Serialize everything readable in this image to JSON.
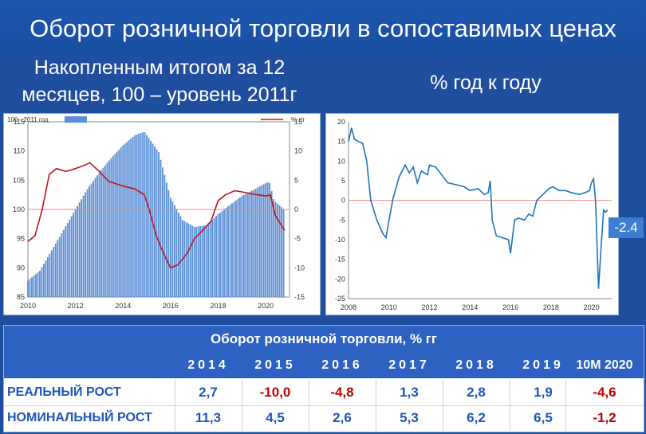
{
  "slide": {
    "title": "Оборот розничной торговли в сопоставимых ценах",
    "left_subtitle_line1": "Накопленным итогом за 12",
    "left_subtitle_line2": "месяцев, 100 – уровень 2011г",
    "right_subtitle": "% год к году"
  },
  "colors": {
    "background": "#1f4e9e",
    "bar": "#5b8fd6",
    "red_line": "#c0141c",
    "blue_line": "#1f74b8",
    "negative": "#c00000",
    "positive": "#1f56b6"
  },
  "chart_data": [
    {
      "type": "bar",
      "legend": {
        "bar_label": "100 - 2011 год",
        "line_label": "% г/г"
      },
      "x_ticks": [
        "2010",
        "2012",
        "2014",
        "2016",
        "2018",
        "2020"
      ],
      "ylim_left": [
        85,
        115
      ],
      "y_ticks_left": [
        "85",
        "90",
        "95",
        "100",
        "105",
        "110",
        "115"
      ],
      "ylim_right": [
        -15,
        15
      ],
      "y_ticks_right": [
        "-15",
        "-10",
        "-5",
        "0",
        "5",
        "10",
        "15"
      ],
      "grid": false,
      "series": [
        {
          "name": "100 - 2011 год",
          "kind": "bar",
          "axis": "left",
          "points": [
            [
              2010.0,
              87.8
            ],
            [
              2010.5,
              89.5
            ],
            [
              2011.0,
              93.0
            ],
            [
              2011.5,
              96.5
            ],
            [
              2012.0,
              100.0
            ],
            [
              2012.5,
              103.5
            ],
            [
              2013.0,
              106.3
            ],
            [
              2013.5,
              108.8
            ],
            [
              2014.0,
              111.0
            ],
            [
              2014.5,
              112.7
            ],
            [
              2014.9,
              113.3
            ],
            [
              2015.5,
              109.8
            ],
            [
              2016.0,
              102.0
            ],
            [
              2016.5,
              98.2
            ],
            [
              2017.0,
              97.0
            ],
            [
              2017.5,
              97.3
            ],
            [
              2018.0,
              99.2
            ],
            [
              2018.5,
              100.8
            ],
            [
              2019.0,
              102.3
            ],
            [
              2019.5,
              103.4
            ],
            [
              2020.0,
              104.5
            ],
            [
              2020.15,
              104.8
            ],
            [
              2020.35,
              101.5
            ],
            [
              2020.75,
              100.1
            ]
          ]
        },
        {
          "name": "% г/г",
          "kind": "line",
          "axis": "right",
          "points": [
            [
              2010.0,
              -5.5
            ],
            [
              2010.3,
              -4.5
            ],
            [
              2010.6,
              0.0
            ],
            [
              2010.9,
              6.0
            ],
            [
              2011.2,
              7.0
            ],
            [
              2011.6,
              6.5
            ],
            [
              2012.0,
              7.0
            ],
            [
              2012.4,
              7.6
            ],
            [
              2012.6,
              8.0
            ],
            [
              2013.0,
              6.5
            ],
            [
              2013.4,
              4.8
            ],
            [
              2014.0,
              4.0
            ],
            [
              2014.5,
              3.5
            ],
            [
              2014.9,
              2.5
            ],
            [
              2015.1,
              0.0
            ],
            [
              2015.4,
              -4.5
            ],
            [
              2015.7,
              -7.5
            ],
            [
              2016.0,
              -10.0
            ],
            [
              2016.3,
              -9.5
            ],
            [
              2016.7,
              -7.5
            ],
            [
              2017.0,
              -5.0
            ],
            [
              2017.3,
              -3.8
            ],
            [
              2017.7,
              -2.0
            ],
            [
              2018.0,
              1.5
            ],
            [
              2018.3,
              2.5
            ],
            [
              2018.7,
              3.2
            ],
            [
              2019.0,
              3.0
            ],
            [
              2019.5,
              2.6
            ],
            [
              2020.0,
              2.3
            ],
            [
              2020.2,
              2.5
            ],
            [
              2020.4,
              -1.0
            ],
            [
              2020.7,
              -3.0
            ],
            [
              2020.8,
              -3.6
            ]
          ]
        }
      ]
    },
    {
      "type": "line",
      "x_ticks": [
        "2008",
        "2010",
        "2012",
        "2014",
        "2016",
        "2018",
        "2020"
      ],
      "ylim": [
        -25,
        20
      ],
      "y_ticks": [
        "-25",
        "-20",
        "-15",
        "-10",
        "-5",
        "0",
        "5",
        "10",
        "15",
        "20"
      ],
      "grid": false,
      "end_label": "-2.4",
      "series": [
        {
          "points": [
            [
              2008.0,
              15.0
            ],
            [
              2008.15,
              18.5
            ],
            [
              2008.3,
              15.5
            ],
            [
              2008.5,
              15.0
            ],
            [
              2008.7,
              14.5
            ],
            [
              2008.9,
              10.0
            ],
            [
              2009.1,
              0.0
            ],
            [
              2009.4,
              -5.0
            ],
            [
              2009.7,
              -8.5
            ],
            [
              2009.85,
              -9.5
            ],
            [
              2010.0,
              -5.0
            ],
            [
              2010.2,
              0.5
            ],
            [
              2010.5,
              6.0
            ],
            [
              2010.8,
              9.0
            ],
            [
              2011.0,
              7.0
            ],
            [
              2011.2,
              8.5
            ],
            [
              2011.4,
              4.5
            ],
            [
              2011.6,
              7.5
            ],
            [
              2011.9,
              6.5
            ],
            [
              2012.0,
              9.0
            ],
            [
              2012.3,
              8.5
            ],
            [
              2012.6,
              6.5
            ],
            [
              2012.9,
              4.5
            ],
            [
              2013.3,
              4.0
            ],
            [
              2013.7,
              3.5
            ],
            [
              2014.0,
              2.5
            ],
            [
              2014.4,
              3.0
            ],
            [
              2014.7,
              1.5
            ],
            [
              2014.9,
              2.0
            ],
            [
              2015.0,
              5.0
            ],
            [
              2015.1,
              -5.0
            ],
            [
              2015.3,
              -9.0
            ],
            [
              2015.6,
              -9.5
            ],
            [
              2015.9,
              -10.0
            ],
            [
              2016.0,
              -13.5
            ],
            [
              2016.2,
              -5.0
            ],
            [
              2016.4,
              -4.5
            ],
            [
              2016.7,
              -5.0
            ],
            [
              2016.9,
              -3.5
            ],
            [
              2017.1,
              -4.0
            ],
            [
              2017.3,
              0.0
            ],
            [
              2017.6,
              1.5
            ],
            [
              2017.9,
              3.0
            ],
            [
              2018.1,
              3.5
            ],
            [
              2018.4,
              2.5
            ],
            [
              2018.7,
              2.5
            ],
            [
              2019.0,
              2.0
            ],
            [
              2019.4,
              1.5
            ],
            [
              2019.7,
              2.0
            ],
            [
              2019.9,
              2.5
            ],
            [
              2020.0,
              4.5
            ],
            [
              2020.1,
              5.5
            ],
            [
              2020.2,
              0.0
            ],
            [
              2020.35,
              -22.5
            ],
            [
              2020.5,
              -10.0
            ],
            [
              2020.6,
              -2.5
            ],
            [
              2020.7,
              -3.0
            ],
            [
              2020.8,
              -2.4
            ]
          ]
        }
      ]
    }
  ],
  "table": {
    "title": "Оборот розничной торговли, % гг",
    "headers": [
      "2014",
      "2015",
      "2016",
      "2017",
      "2018",
      "2019",
      "10M  2020"
    ],
    "rows": [
      {
        "label": "РЕАЛЬНЫЙ РОСТ",
        "values": [
          "2,7",
          "-10,0",
          "-4,8",
          "1,3",
          "2,8",
          "1,9",
          "-4,6"
        ]
      },
      {
        "label": "НОМИНАЛЬНЫЙ РОСТ",
        "values": [
          "11,3",
          "4,5",
          "2,6",
          "5,3",
          "6,2",
          "6,5",
          "-1,2"
        ]
      }
    ]
  }
}
